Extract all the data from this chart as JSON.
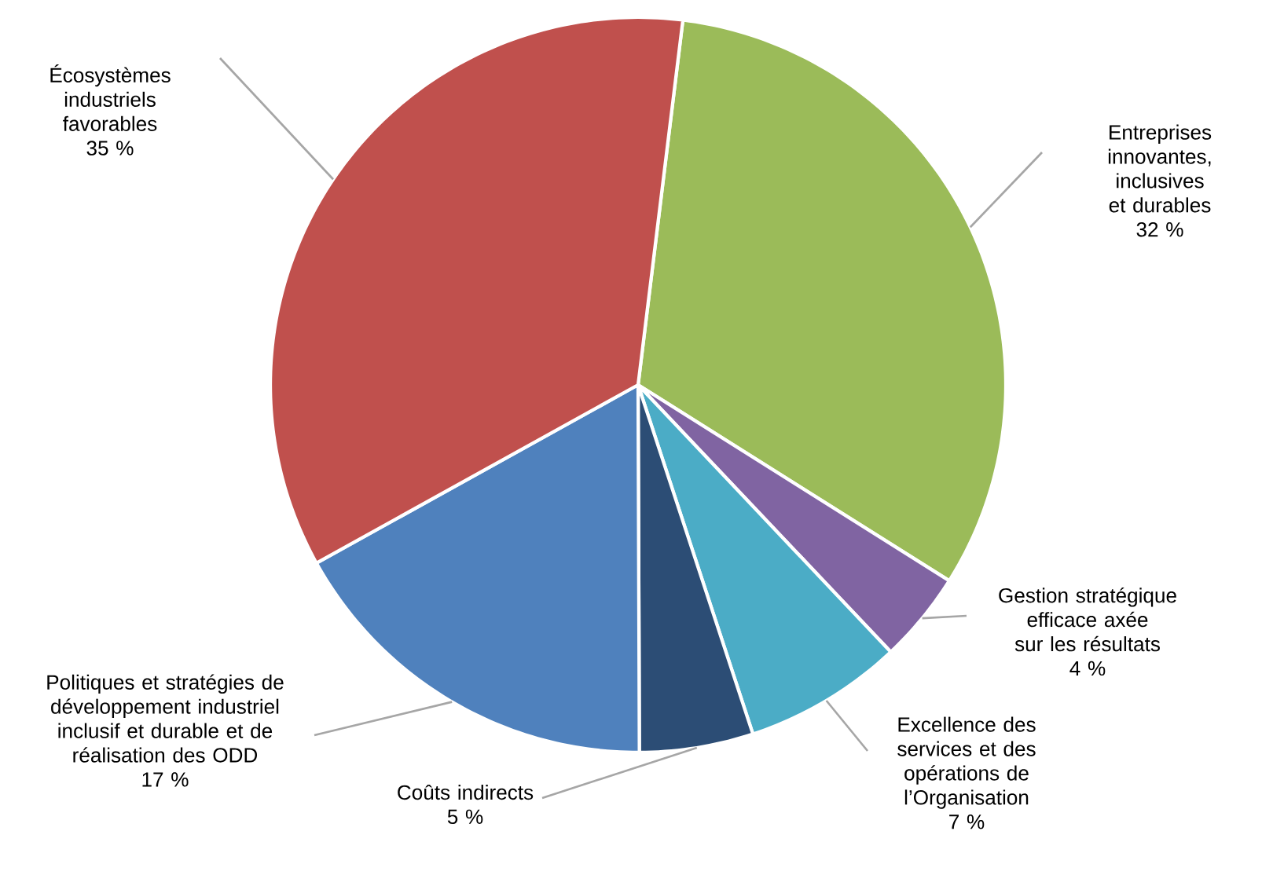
{
  "chart_data": {
    "type": "pie",
    "categories": [
      "Entreprises innovantes, inclusives et durables",
      "Gestion stratégique efficace axée sur les résultats",
      "Excellence des services et des opérations de l’Organisation",
      "Coûts indirects",
      "Politiques et stratégies de développement industriel inclusif et durable et de réalisation des ODD",
      "Écosystèmes industriels favorables"
    ],
    "values": [
      32,
      4,
      7,
      5,
      17,
      35
    ],
    "value_labels": [
      "32 %",
      "4 %",
      "7 %",
      "5 %",
      "17 %",
      "35 %"
    ],
    "colors": [
      "#9bbb59",
      "#8064a2",
      "#4bacc6",
      "#2c4d75",
      "#4f81bd",
      "#c0504d"
    ]
  }
}
